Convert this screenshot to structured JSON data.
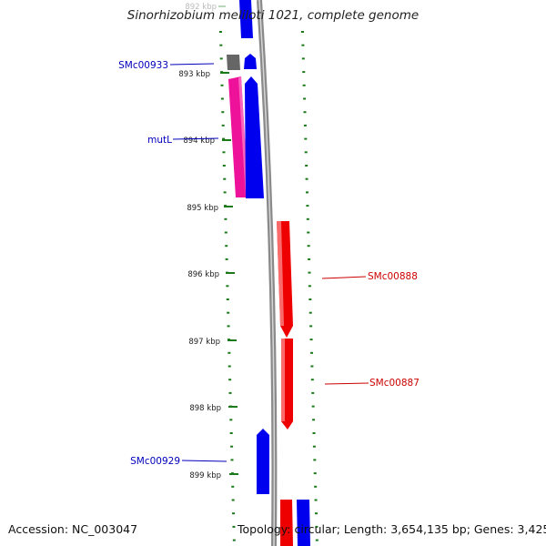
{
  "title": "Sinorhizobium meliloti 1021, complete genome",
  "accession_text": "Accession: NC_003047",
  "topology_text": "Topology: circular; Length: 3,654,135 bp; Genes: 3,425",
  "ticks": [
    {
      "label": "892 kbp",
      "faded": true
    },
    {
      "label": "893 kbp"
    },
    {
      "label": "894 kbp"
    },
    {
      "label": "895 kbp"
    },
    {
      "label": "896 kbp"
    },
    {
      "label": "897 kbp"
    },
    {
      "label": "898 kbp"
    },
    {
      "label": "899 kbp"
    }
  ],
  "gene_labels": [
    {
      "text": "SMc00933",
      "color": "#0000bb"
    },
    {
      "text": "mutL",
      "color": "#0000bb"
    },
    {
      "text": "SMc00888",
      "color": "#cc0000"
    },
    {
      "text": "SMc00887",
      "color": "#cc0000"
    },
    {
      "text": "SMc00929",
      "color": "#0000bb"
    }
  ],
  "colors": {
    "backbone": "#8a8a8a",
    "tick": "#1a7a1a",
    "gene_blue": "#0000ee",
    "gene_red": "#ee0000",
    "gene_magenta": "#ee1199",
    "gene_gray": "#666666"
  }
}
